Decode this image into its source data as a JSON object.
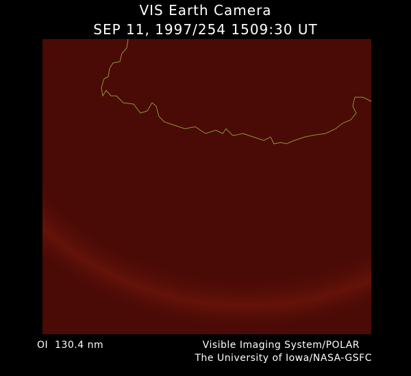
{
  "header": {
    "title": "VIS Earth Camera",
    "subtitle": "SEP 11, 1997/254 1509:30 UT"
  },
  "footer": {
    "filter": "OI  130.4 nm",
    "credit_line1": "Visible Imaging System/POLAR",
    "credit_line2": "The University of Iowa/NASA-GSFC"
  }
}
